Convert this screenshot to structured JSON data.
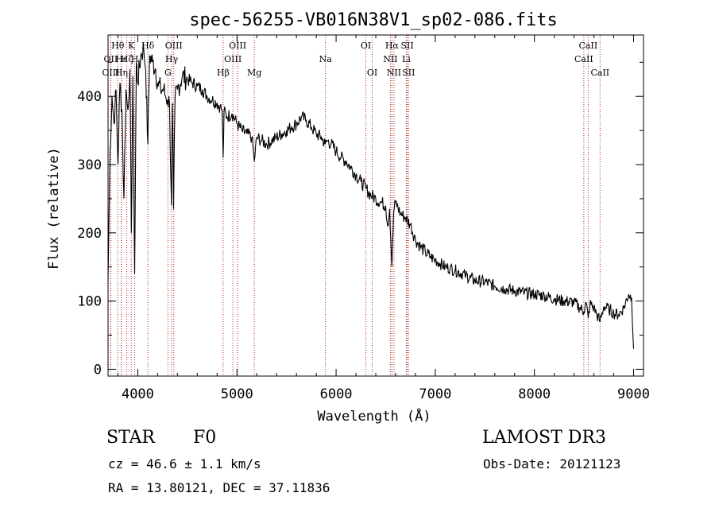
{
  "chart_data": {
    "type": "line",
    "title": "spec-56255-VB016N38V1_sp02-086.fits",
    "xlabel": "Wavelength (Å)",
    "ylabel": "Flux (relative)",
    "xlim": [
      3700,
      9100
    ],
    "ylim": [
      -10,
      490
    ],
    "xticks": [
      4000,
      5000,
      6000,
      7000,
      8000,
      9000
    ],
    "yticks": [
      0,
      100,
      200,
      300,
      400
    ],
    "grid": false,
    "series": [
      {
        "name": "flux",
        "x": [
          3700,
          3720,
          3740,
          3760,
          3780,
          3800,
          3820,
          3840,
          3860,
          3880,
          3900,
          3920,
          3935,
          3950,
          3968,
          3985,
          4000,
          4030,
          4060,
          4080,
          4101,
          4120,
          4150,
          4180,
          4200,
          4230,
          4260,
          4280,
          4300,
          4320,
          4340,
          4350,
          4361,
          4375,
          4400,
          4450,
          4500,
          4550,
          4600,
          4650,
          4700,
          4750,
          4800,
          4830,
          4850,
          4861,
          4870,
          4900,
          4950,
          5000,
          5050,
          5100,
          5150,
          5175,
          5200,
          5250,
          5300,
          5350,
          5400,
          5450,
          5500,
          5550,
          5600,
          5650,
          5700,
          5750,
          5800,
          5850,
          5890,
          5910,
          5950,
          6000,
          6050,
          6100,
          6150,
          6200,
          6250,
          6300,
          6350,
          6400,
          6450,
          6500,
          6520,
          6540,
          6563,
          6580,
          6600,
          6650,
          6700,
          6750,
          6800,
          6850,
          6900,
          6950,
          7000,
          7050,
          7100,
          7150,
          7200,
          7300,
          7400,
          7500,
          7600,
          7700,
          7800,
          7900,
          8000,
          8100,
          8200,
          8300,
          8400,
          8498,
          8520,
          8542,
          8560,
          8600,
          8630,
          8662,
          8700,
          8750,
          8800,
          8850,
          8900,
          8950,
          8980,
          9000
        ],
        "values": [
          130,
          320,
          400,
          360,
          410,
          300,
          420,
          380,
          250,
          410,
          380,
          440,
          200,
          430,
          140,
          450,
          420,
          460,
          470,
          440,
          330,
          460,
          450,
          440,
          420,
          410,
          410,
          400,
          395,
          390,
          240,
          390,
          235,
          395,
          410,
          430,
          425,
          420,
          415,
          410,
          400,
          395,
          390,
          385,
          380,
          310,
          378,
          370,
          375,
          360,
          350,
          345,
          340,
          305,
          340,
          335,
          330,
          335,
          340,
          345,
          350,
          355,
          360,
          370,
          365,
          355,
          345,
          340,
          330,
          335,
          330,
          320,
          310,
          305,
          295,
          285,
          275,
          265,
          255,
          250,
          245,
          240,
          210,
          235,
          150,
          230,
          245,
          228,
          222,
          212,
          190,
          180,
          172,
          165,
          160,
          155,
          150,
          148,
          145,
          138,
          130,
          128,
          122,
          118,
          115,
          112,
          110,
          108,
          103,
          100,
          98,
          85,
          98,
          75,
          96,
          90,
          80,
          70,
          92,
          88,
          82,
          80,
          90,
          110,
          105,
          30
        ]
      }
    ],
    "line_markers": [
      {
        "label": "Hθ",
        "wavelength": 3798,
        "row": 0
      },
      {
        "label": "OII",
        "wavelength": 3727,
        "row": 1
      },
      {
        "label": "OIII",
        "wavelength": 3727,
        "row": 2
      },
      {
        "label": "K",
        "wavelength": 3934,
        "row": 0
      },
      {
        "label": "Hε",
        "wavelength": 3835,
        "row": 1
      },
      {
        "label": "Hη",
        "wavelength": 3835,
        "row": 2
      },
      {
        "label": "Hζ",
        "wavelength": 3889,
        "row": 1
      },
      {
        "label": "H",
        "wavelength": 3969,
        "row": 1
      },
      {
        "label": "Hδ",
        "wavelength": 4102,
        "row": 0
      },
      {
        "label": "OIII",
        "wavelength": 4363,
        "row": 0
      },
      {
        "label": "Hγ",
        "wavelength": 4341,
        "row": 1
      },
      {
        "label": "G",
        "wavelength": 4304,
        "row": 2
      },
      {
        "label": "OIII",
        "wavelength": 5007,
        "row": 0
      },
      {
        "label": "OIII",
        "wavelength": 4959,
        "row": 1
      },
      {
        "label": "Hβ",
        "wavelength": 4861,
        "row": 2
      },
      {
        "label": "Mg",
        "wavelength": 5175,
        "row": 2
      },
      {
        "label": "Na",
        "wavelength": 5893,
        "row": 1
      },
      {
        "label": "OI",
        "wavelength": 6300,
        "row": 0
      },
      {
        "label": "OI",
        "wavelength": 6364,
        "row": 2
      },
      {
        "label": "Hα",
        "wavelength": 6563,
        "row": 0
      },
      {
        "label": "SII",
        "wavelength": 6717,
        "row": 0
      },
      {
        "label": "NII",
        "wavelength": 6548,
        "row": 1
      },
      {
        "label": "Li",
        "wavelength": 6708,
        "row": 1
      },
      {
        "label": "NII",
        "wavelength": 6584,
        "row": 2
      },
      {
        "label": "SII",
        "wavelength": 6731,
        "row": 2
      },
      {
        "label": "CaII",
        "wavelength": 8542,
        "row": 0
      },
      {
        "label": "CaII",
        "wavelength": 8498,
        "row": 1
      },
      {
        "label": "CaII",
        "wavelength": 8662,
        "row": 2
      }
    ]
  },
  "info": {
    "class_label": "STAR",
    "subclass_label": "F0",
    "survey_label": "LAMOST DR3",
    "redshift_text": "cz = 46.6 ± 1.1 km/s",
    "obs_date_text": "Obs-Date: 20121123",
    "coords_text": "RA =  13.80121, DEC =  37.11836"
  },
  "colors": {
    "axis": "#000000",
    "spectrum": "#000000",
    "marker": "#b22222"
  }
}
